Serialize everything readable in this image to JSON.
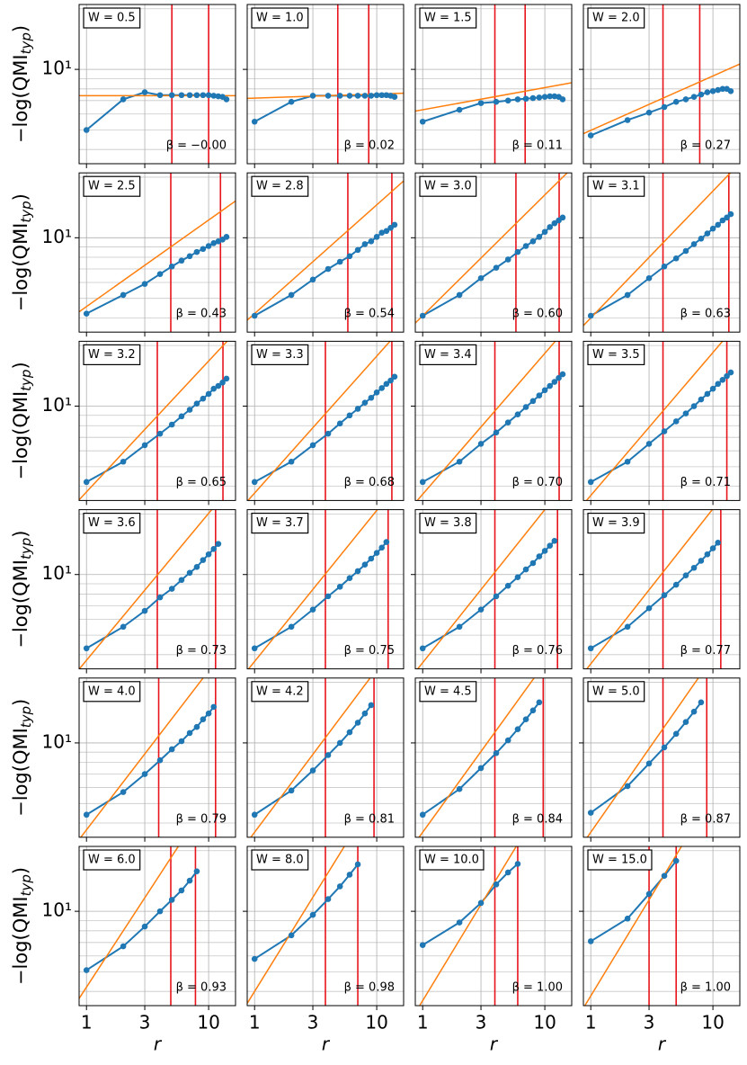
{
  "shared_axes": {
    "xlim": [
      0.87,
      16.6
    ],
    "ylim": [
      3.4,
      21
    ],
    "xticks": [
      1,
      3,
      10
    ],
    "yticks": [
      {
        "value": 10,
        "label": "10¹"
      }
    ],
    "yminor": [
      4,
      5,
      6,
      7,
      8,
      9,
      20
    ],
    "xlabel": "r",
    "ylabel": {
      "main": "−log(QMI",
      "sub": "typ",
      "close": ")"
    },
    "log_x": true,
    "log_y": true,
    "grid": true,
    "line_color": "#1f77b4",
    "fit_color": "#ff7f0e",
    "range_color": "#e8141c"
  },
  "chart_data": [
    {
      "type": "line",
      "title": "W = 0.5",
      "x": [
        1,
        2,
        3,
        4,
        5,
        6,
        7,
        8,
        9,
        10,
        11,
        12,
        13,
        14
      ],
      "values": [
        5.0,
        7.1,
        7.7,
        7.45,
        7.45,
        7.45,
        7.45,
        7.45,
        7.45,
        7.45,
        7.4,
        7.35,
        7.3,
        7.1
      ],
      "fit": {
        "beta": 0,
        "value_at_1": 7.4
      },
      "beta_label": "β = −0.00",
      "fit_range": [
        5,
        10
      ]
    },
    {
      "type": "line",
      "title": "W = 1.0",
      "x": [
        1,
        2,
        3,
        4,
        5,
        6,
        7,
        8,
        9,
        10,
        11,
        12,
        13,
        14
      ],
      "values": [
        5.5,
        6.9,
        7.4,
        7.4,
        7.4,
        7.4,
        7.4,
        7.4,
        7.4,
        7.45,
        7.45,
        7.45,
        7.4,
        7.3
      ],
      "fit": {
        "beta": 0.02,
        "value_at_1": 7.2
      },
      "beta_label": "β = 0.02",
      "fit_range": [
        4.8,
        8.6
      ]
    },
    {
      "type": "line",
      "title": "W = 1.5",
      "x": [
        1,
        2,
        3,
        4,
        5,
        6,
        7,
        8,
        9,
        10,
        11,
        12,
        13,
        14
      ],
      "values": [
        5.5,
        6.3,
        6.8,
        6.9,
        7.0,
        7.1,
        7.15,
        7.2,
        7.25,
        7.3,
        7.35,
        7.35,
        7.3,
        7.1
      ],
      "fit": {
        "beta": 0.11,
        "value_at_1": 6.3
      },
      "beta_label": "β = 0.11",
      "fit_range": [
        3.9,
        6.9
      ]
    },
    {
      "type": "line",
      "title": "W = 2.0",
      "x": [
        1,
        2,
        3,
        4,
        5,
        6,
        7,
        8,
        9,
        10,
        11,
        12,
        13,
        14
      ],
      "values": [
        4.7,
        5.6,
        6.1,
        6.5,
        6.9,
        7.1,
        7.3,
        7.5,
        7.7,
        7.8,
        7.9,
        8.0,
        8.0,
        7.8
      ],
      "fit": {
        "beta": 0.27,
        "value_at_1": 4.98
      },
      "beta_label": "β = 0.27",
      "fit_range": [
        3.9,
        7.8
      ]
    },
    {
      "type": "line",
      "title": "W = 2.5",
      "x": [
        1,
        2,
        3,
        4,
        5,
        6,
        7,
        8,
        9,
        10,
        11,
        12,
        13,
        14
      ],
      "values": [
        4.2,
        5.2,
        5.9,
        6.6,
        7.2,
        7.7,
        8.1,
        8.5,
        8.8,
        9.1,
        9.4,
        9.6,
        9.8,
        10.1
      ],
      "fit": {
        "beta": 0.43,
        "value_at_1": 4.55
      },
      "beta_label": "β = 0.43",
      "fit_range": [
        4.9,
        12.5
      ]
    },
    {
      "type": "line",
      "title": "W = 2.8",
      "x": [
        1,
        2,
        3,
        4,
        5,
        6,
        7,
        8,
        9,
        10,
        11,
        12,
        13,
        14
      ],
      "values": [
        4.1,
        5.2,
        6.2,
        7.0,
        7.6,
        8.1,
        8.7,
        9.3,
        9.6,
        10.1,
        10.6,
        10.8,
        11.2,
        11.6
      ],
      "fit": {
        "beta": 0.54,
        "value_at_1": 4.2
      },
      "beta_label": "β = 0.54",
      "fit_range": [
        5.8,
        13.3
      ]
    },
    {
      "type": "line",
      "title": "W = 3.0",
      "x": [
        1,
        2,
        3,
        4,
        5,
        6,
        7,
        8,
        9,
        10,
        11,
        12,
        13,
        14
      ],
      "values": [
        4.1,
        5.2,
        6.3,
        7.1,
        7.8,
        8.5,
        9.1,
        9.6,
        10.1,
        10.7,
        11.3,
        11.8,
        12.2,
        12.6
      ],
      "fit": {
        "beta": 0.6,
        "value_at_1": 4.1
      },
      "beta_label": "β = 0.60",
      "fit_range": [
        5.8,
        13.1
      ]
    },
    {
      "type": "line",
      "title": "W = 3.1",
      "x": [
        1,
        2,
        3,
        4,
        5,
        6,
        7,
        8,
        9,
        10,
        11,
        12,
        13,
        14
      ],
      "values": [
        4.1,
        5.2,
        6.3,
        7.2,
        7.9,
        8.6,
        9.3,
        9.9,
        10.5,
        11.1,
        11.6,
        12.2,
        12.6,
        13.1
      ],
      "fit": {
        "beta": 0.63,
        "value_at_1": 4.0
      },
      "beta_label": "β = 0.63",
      "fit_range": [
        3.9,
        13.5
      ]
    },
    {
      "type": "line",
      "title": "W = 3.2",
      "x": [
        1,
        2,
        3,
        4,
        5,
        6,
        7,
        8,
        9,
        10,
        11,
        12,
        13,
        14
      ],
      "values": [
        4.2,
        5.3,
        6.4,
        7.3,
        8.1,
        8.9,
        9.6,
        10.3,
        10.9,
        11.5,
        12.2,
        12.6,
        13.1,
        13.7
      ],
      "fit": {
        "beta": 0.65,
        "value_at_1": 3.75
      },
      "beta_label": "β = 0.65",
      "fit_range": [
        3.8,
        13.1
      ]
    },
    {
      "type": "line",
      "title": "W = 3.3",
      "x": [
        1,
        2,
        3,
        4,
        5,
        6,
        7,
        8,
        9,
        10,
        11,
        12,
        13,
        14
      ],
      "values": [
        4.2,
        5.3,
        6.4,
        7.3,
        8.2,
        9.0,
        9.7,
        10.4,
        11.0,
        11.7,
        12.3,
        12.9,
        13.4,
        14.0
      ],
      "fit": {
        "beta": 0.68,
        "value_at_1": 3.7
      },
      "beta_label": "β = 0.68",
      "fit_range": [
        3.8,
        13.3
      ]
    },
    {
      "type": "line",
      "title": "W = 3.4",
      "x": [
        1,
        2,
        3,
        4,
        5,
        6,
        7,
        8,
        9,
        10,
        11,
        12,
        13,
        14
      ],
      "values": [
        4.2,
        5.3,
        6.5,
        7.4,
        8.3,
        9.1,
        9.9,
        10.6,
        11.3,
        12.0,
        12.6,
        13.2,
        13.8,
        14.4
      ],
      "fit": {
        "beta": 0.7,
        "value_at_1": 3.65
      },
      "beta_label": "β = 0.70",
      "fit_range": [
        3.9,
        13.1
      ]
    },
    {
      "type": "line",
      "title": "W = 3.5",
      "x": [
        1,
        2,
        3,
        4,
        5,
        6,
        7,
        8,
        9,
        10,
        11,
        12,
        13,
        14
      ],
      "values": [
        4.2,
        5.3,
        6.5,
        7.5,
        8.4,
        9.2,
        10.0,
        10.8,
        11.5,
        12.2,
        12.9,
        13.5,
        14.1,
        14.7
      ],
      "fit": {
        "beta": 0.71,
        "value_at_1": 3.6
      },
      "beta_label": "β = 0.71",
      "fit_range": [
        3.9,
        13.0
      ]
    },
    {
      "type": "line",
      "title": "W = 3.6",
      "x": [
        1,
        2,
        3,
        4,
        5,
        6,
        7,
        8,
        9,
        10,
        11,
        12
      ],
      "values": [
        4.3,
        5.5,
        6.6,
        7.7,
        8.5,
        9.4,
        10.2,
        10.9,
        11.8,
        12.6,
        13.4,
        14.2
      ],
      "fit": {
        "beta": 0.73,
        "value_at_1": 3.75
      },
      "beta_label": "β = 0.73",
      "fit_range": [
        3.8,
        11.4
      ]
    },
    {
      "type": "line",
      "title": "W = 3.7",
      "x": [
        1,
        2,
        3,
        4,
        5,
        6,
        7,
        8,
        9,
        10,
        11,
        12
      ],
      "values": [
        4.3,
        5.5,
        6.7,
        7.8,
        8.7,
        9.6,
        10.4,
        11.2,
        12.0,
        12.8,
        13.6,
        14.5
      ],
      "fit": {
        "beta": 0.75,
        "value_at_1": 3.7
      },
      "beta_label": "β = 0.75",
      "fit_range": [
        3.8,
        12.4
      ]
    },
    {
      "type": "line",
      "title": "W = 3.8",
      "x": [
        1,
        2,
        3,
        4,
        5,
        6,
        7,
        8,
        9,
        10,
        11,
        12
      ],
      "values": [
        4.3,
        5.5,
        6.7,
        7.8,
        8.8,
        9.7,
        10.6,
        11.4,
        12.3,
        13.1,
        13.9,
        14.7
      ],
      "fit": {
        "beta": 0.76,
        "value_at_1": 3.65
      },
      "beta_label": "β = 0.76",
      "fit_range": [
        3.9,
        12.7
      ]
    },
    {
      "type": "line",
      "title": "W = 3.9",
      "x": [
        1,
        2,
        3,
        4,
        5,
        6,
        7,
        8,
        9,
        10,
        11
      ],
      "values": [
        4.3,
        5.5,
        6.8,
        7.9,
        8.9,
        9.9,
        10.8,
        11.7,
        12.6,
        13.5,
        14.4
      ],
      "fit": {
        "beta": 0.77,
        "value_at_1": 3.6
      },
      "beta_label": "β = 0.77",
      "fit_range": [
        3.9,
        11.6
      ]
    },
    {
      "type": "line",
      "title": "W = 4.0",
      "x": [
        1,
        2,
        3,
        4,
        5,
        6,
        7,
        8,
        9,
        10,
        11
      ],
      "values": [
        4.4,
        5.7,
        7.0,
        8.2,
        9.3,
        10.2,
        11.2,
        12.0,
        13.1,
        14.0,
        15.1
      ],
      "fit": {
        "beta": 0.79,
        "value_at_1": 3.7
      },
      "beta_label": "β = 0.79",
      "fit_range": [
        3.9,
        11.4
      ]
    },
    {
      "type": "line",
      "title": "W = 4.2",
      "x": [
        1,
        2,
        3,
        4,
        5,
        6,
        7,
        8,
        9
      ],
      "values": [
        4.4,
        5.8,
        7.3,
        8.7,
        10.0,
        11.3,
        12.6,
        14.0,
        15.4
      ],
      "fit": {
        "beta": 0.81,
        "value_at_1": 3.6
      },
      "beta_label": "β = 0.81",
      "fit_range": [
        3.8,
        9.5
      ]
    },
    {
      "type": "line",
      "title": "W = 4.5",
      "x": [
        1,
        2,
        3,
        4,
        5,
        6,
        7,
        8,
        9
      ],
      "values": [
        4.4,
        5.9,
        7.5,
        8.9,
        10.3,
        11.7,
        13.1,
        14.5,
        15.9
      ],
      "fit": {
        "beta": 0.84,
        "value_at_1": 3.6
      },
      "beta_label": "β = 0.84",
      "fit_range": [
        3.9,
        9.7
      ]
    },
    {
      "type": "line",
      "title": "W = 5.0",
      "x": [
        1,
        2,
        3,
        4,
        5,
        6,
        7,
        8
      ],
      "values": [
        4.5,
        6.1,
        7.9,
        9.5,
        11.1,
        12.7,
        14.3,
        15.9
      ],
      "fit": {
        "beta": 0.87,
        "value_at_1": 3.6
      },
      "beta_label": "β = 0.87",
      "fit_range": [
        3.9,
        8.9
      ]
    },
    {
      "type": "line",
      "title": "W = 6.0",
      "x": [
        1,
        2,
        3,
        4,
        5,
        6,
        7,
        8
      ],
      "values": [
        5.1,
        6.7,
        8.4,
        10.0,
        11.4,
        12.7,
        14.2,
        15.8
      ],
      "fit": {
        "beta": 0.93,
        "value_at_1": 4.2
      },
      "beta_label": "β = 0.93",
      "fit_range": [
        4.9,
        7.8
      ]
    },
    {
      "type": "line",
      "title": "W = 8.0",
      "x": [
        1,
        2,
        3,
        4,
        5,
        6,
        7
      ],
      "values": [
        5.8,
        7.6,
        9.6,
        11.5,
        13.3,
        15.2,
        17.1
      ],
      "fit": {
        "beta": 0.98,
        "value_at_1": 4.0
      },
      "beta_label": "β = 0.98",
      "fit_range": [
        3.8,
        7.0
      ]
    },
    {
      "type": "line",
      "title": "W = 10.0",
      "x": [
        1,
        2,
        3,
        4,
        5,
        6
      ],
      "values": [
        6.8,
        8.8,
        11.0,
        13.6,
        15.6,
        17.2
      ],
      "fit": {
        "beta": 1.0,
        "value_at_1": 3.6
      },
      "beta_label": "β = 1.00",
      "fit_range": [
        3.9,
        6.0
      ]
    },
    {
      "type": "line",
      "title": "W = 15.0",
      "x": [
        1,
        2,
        3,
        4,
        5
      ],
      "values": [
        7.1,
        9.2,
        12.2,
        15.0,
        17.8
      ],
      "fit": {
        "beta": 1.0,
        "value_at_1": 3.8
      },
      "beta_label": "β = 1.00",
      "fit_range": [
        3.0,
        5.0
      ]
    }
  ]
}
